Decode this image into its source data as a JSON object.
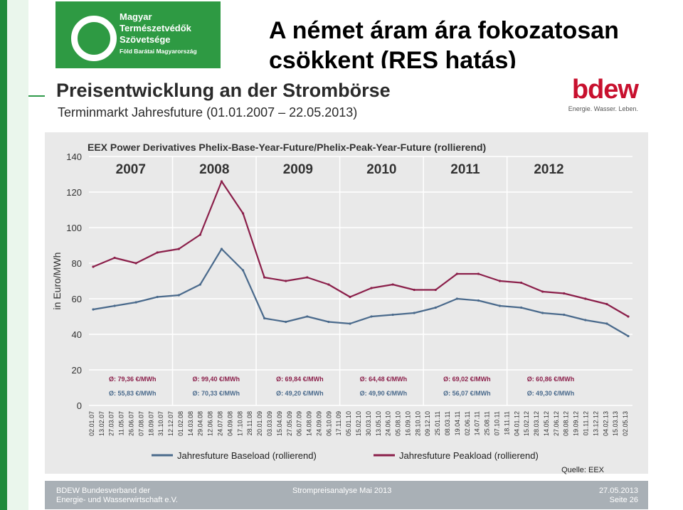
{
  "slide": {
    "title": "A német áram ára fokozatosan csökkent (RES hatás)"
  },
  "org_logo": {
    "line1": "Magyar",
    "line2": "Természetvédők",
    "line3": "Szövetsége",
    "tagline": "Föld Barátai Magyarország"
  },
  "image": {
    "title": "Preisentwicklung an der Strombörse",
    "subtitle": "Terminmarkt Jahresfuture (01.01.2007 – 22.05.2013)",
    "brand": "bdew",
    "brand_tagline": "Energie. Wasser. Leben.",
    "source": "Quelle: EEX"
  },
  "footer": {
    "org_line1": "BDEW Bundesverband der",
    "org_line2": "Energie- und Wasserwirtschaft e.V.",
    "report": "Strompreisanalyse Mai 2013",
    "date": "27.05.2013",
    "page": "Seite 26"
  },
  "colors": {
    "baseload": "#4a6a8c",
    "peakload": "#8b1f4a",
    "brand_green": "#2e9a43",
    "brand_red": "#c8102e"
  },
  "chart_data": {
    "type": "line",
    "title": "EEX Power Derivatives Phelix-Base-Year-Future/Phelix-Peak-Year-Future (rollierend)",
    "ylabel": "in Euro/MWh",
    "xlabel": "",
    "ylim": [
      0,
      140
    ],
    "yticks": [
      0,
      20,
      40,
      60,
      80,
      100,
      120,
      140
    ],
    "grid": true,
    "legend_position": "bottom",
    "years": [
      "2007",
      "2008",
      "2009",
      "2010",
      "2011",
      "2012"
    ],
    "x_tick_labels": [
      "02.01.07",
      "13.02.07",
      "27.03.07",
      "11.05.07",
      "26.06.07",
      "07.08.07",
      "18.09.07",
      "31.10.07",
      "12.12.07",
      "01.02.08",
      "14.03.08",
      "29.04.08",
      "12.06.08",
      "24.07.08",
      "04.09.08",
      "17.10.08",
      "28.11.08",
      "20.01.09",
      "03.03.09",
      "15.04.09",
      "27.05.09",
      "06.07.09",
      "14.08.09",
      "24.09.09",
      "06.10.09",
      "17.11.09",
      "05.01.10",
      "15.02.10",
      "30.03.10",
      "13.05.10",
      "24.06.10",
      "05.08.10",
      "16.09.10",
      "28.10.10",
      "09.12.10",
      "25.01.11",
      "08.03.11",
      "19.04.11",
      "02.06.11",
      "14.07.11",
      "25.08.11",
      "07.10.11",
      "18.11.11",
      "04.01.12",
      "15.02.12",
      "28.03.12",
      "14.05.12",
      "27.06.12",
      "08.08.12",
      "19.09.12",
      "01.11.12",
      "13.12.12",
      "04.02.13",
      "15.03.13",
      "02.05.13"
    ],
    "x": [
      "2007-01",
      "2007-04",
      "2007-07",
      "2007-10",
      "2008-01",
      "2008-04",
      "2008-07",
      "2008-10",
      "2009-01",
      "2009-04",
      "2009-07",
      "2009-10",
      "2010-01",
      "2010-04",
      "2010-07",
      "2010-10",
      "2011-01",
      "2011-04",
      "2011-07",
      "2011-10",
      "2012-01",
      "2012-04",
      "2012-07",
      "2012-10",
      "2013-01",
      "2013-05"
    ],
    "series": [
      {
        "name": "Jahresfuture Baseload (rollierend)",
        "values": [
          54,
          56,
          58,
          61,
          62,
          68,
          88,
          76,
          49,
          47,
          50,
          47,
          46,
          50,
          51,
          52,
          55,
          60,
          59,
          56,
          55,
          52,
          51,
          48,
          46,
          39
        ]
      },
      {
        "name": "Jahresfuture Peakload (rollierend)",
        "values": [
          78,
          83,
          80,
          86,
          88,
          96,
          126,
          108,
          72,
          70,
          72,
          68,
          61,
          66,
          68,
          65,
          65,
          74,
          74,
          70,
          69,
          64,
          63,
          60,
          57,
          50
        ]
      }
    ],
    "annotations": {
      "peak_avg": [
        "Ø: 79,36 €/MWh",
        "Ø: 99,40 €/MWh",
        "Ø: 69,84 €/MWh",
        "Ø: 64,48 €/MWh",
        "Ø: 69,02 €/MWh",
        "Ø: 60,86 €/MWh"
      ],
      "base_avg": [
        "Ø: 55,83 €/MWh",
        "Ø: 70,33 €/MWh",
        "Ø: 49,20 €/MWh",
        "Ø: 49,90 €/MWh",
        "Ø: 56,07 €/MWh",
        "Ø: 49,30 €/MWh"
      ]
    }
  }
}
